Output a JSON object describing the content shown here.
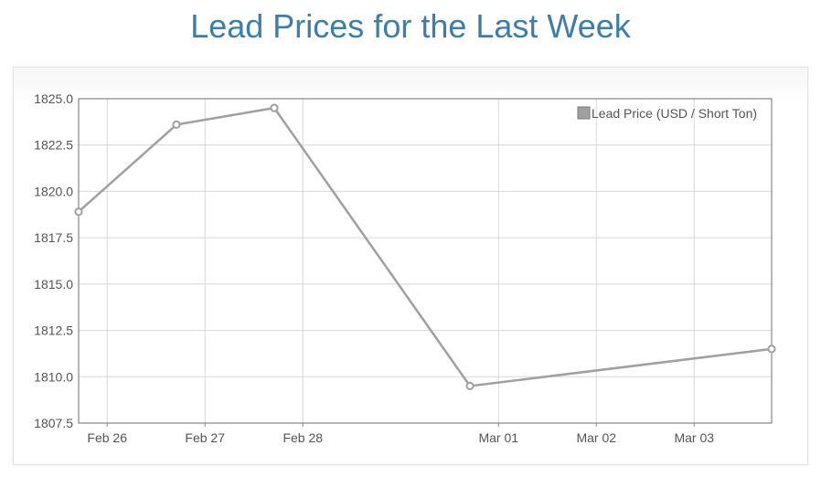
{
  "page": {
    "title": "Lead Prices for the Last Week",
    "title_color": "#3a7ea9"
  },
  "chart_data": {
    "type": "line",
    "title": "",
    "xlabel": "",
    "ylabel": "",
    "x_range": [
      "2024-02-25T17:00",
      "2024-03-03T19:00"
    ],
    "ylim": [
      1807.5,
      1825.0
    ],
    "y_ticks": [
      1825.0,
      1822.5,
      1820.0,
      1817.5,
      1815.0,
      1812.5,
      1810.0,
      1807.5
    ],
    "x_ticks": [
      {
        "date": "2024-02-26",
        "label": "Feb 26"
      },
      {
        "date": "2024-02-27",
        "label": "Feb 27"
      },
      {
        "date": "2024-02-28",
        "label": "Feb 28"
      },
      {
        "date": "2024-03-01",
        "label": "Mar 01"
      },
      {
        "date": "2024-03-02",
        "label": "Mar 02"
      },
      {
        "date": "2024-03-03",
        "label": "Mar 03"
      }
    ],
    "grid": true,
    "legend_position": "top-right",
    "series": [
      {
        "name": "Lead Price (USD / Short Ton)",
        "color": "#a0a0a0",
        "points": [
          {
            "x": "2024-02-25T17:00",
            "y": 1818.9
          },
          {
            "x": "2024-02-26T17:00",
            "y": 1823.6
          },
          {
            "x": "2024-02-27T17:00",
            "y": 1824.5
          },
          {
            "x": "2024-02-29T17:00",
            "y": 1809.5
          },
          {
            "x": "2024-03-03T19:00",
            "y": 1811.5
          }
        ]
      }
    ]
  }
}
